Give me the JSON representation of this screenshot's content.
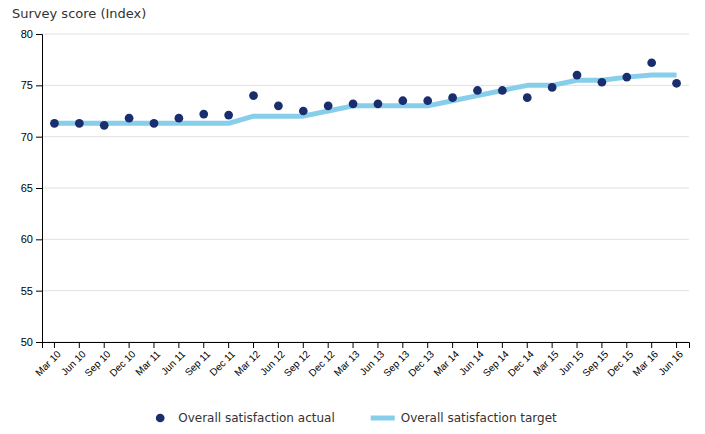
{
  "chart_data": {
    "type": "line",
    "title": "Survey score (Index)",
    "categories": [
      "Mar 10",
      "Jun 10",
      "Sep 10",
      "Dec 10",
      "Mar 11",
      "Jun 11",
      "Sep 11",
      "Dec 11",
      "Mar 12",
      "Jun 12",
      "Sep 12",
      "Dec 12",
      "Mar 13",
      "Jun 13",
      "Sep 13",
      "Dec 13",
      "Mar 14",
      "Jun 14",
      "Sep 14",
      "Dec 14",
      "Mar 15",
      "Jun 15",
      "Sep 15",
      "Dec 15",
      "Mar 16",
      "Jun 16"
    ],
    "series": [
      {
        "name": "Overall satisfaction actual",
        "type": "scatter",
        "marker": "circle",
        "color": "#1a2e6e",
        "values": [
          71.3,
          71.3,
          71.1,
          71.8,
          71.3,
          71.8,
          72.2,
          72.1,
          74.0,
          73.0,
          72.5,
          73.0,
          73.2,
          73.2,
          73.5,
          73.5,
          73.8,
          74.5,
          74.5,
          73.8,
          74.8,
          76.0,
          75.3,
          75.8,
          77.2,
          75.2
        ]
      },
      {
        "name": "Overall satisfaction target",
        "type": "line",
        "color": "#87ceeb",
        "values": [
          71.3,
          71.3,
          71.3,
          71.3,
          71.3,
          71.3,
          71.3,
          71.3,
          72.0,
          72.0,
          72.0,
          72.5,
          73.0,
          73.0,
          73.0,
          73.0,
          73.5,
          74.0,
          74.5,
          75.0,
          75.0,
          75.5,
          75.5,
          75.8,
          76.0,
          76.0
        ]
      }
    ],
    "ylim": [
      50,
      80
    ],
    "yticks": [
      50,
      55,
      60,
      65,
      70,
      75,
      80
    ],
    "grid": true,
    "legend": "bottom"
  }
}
